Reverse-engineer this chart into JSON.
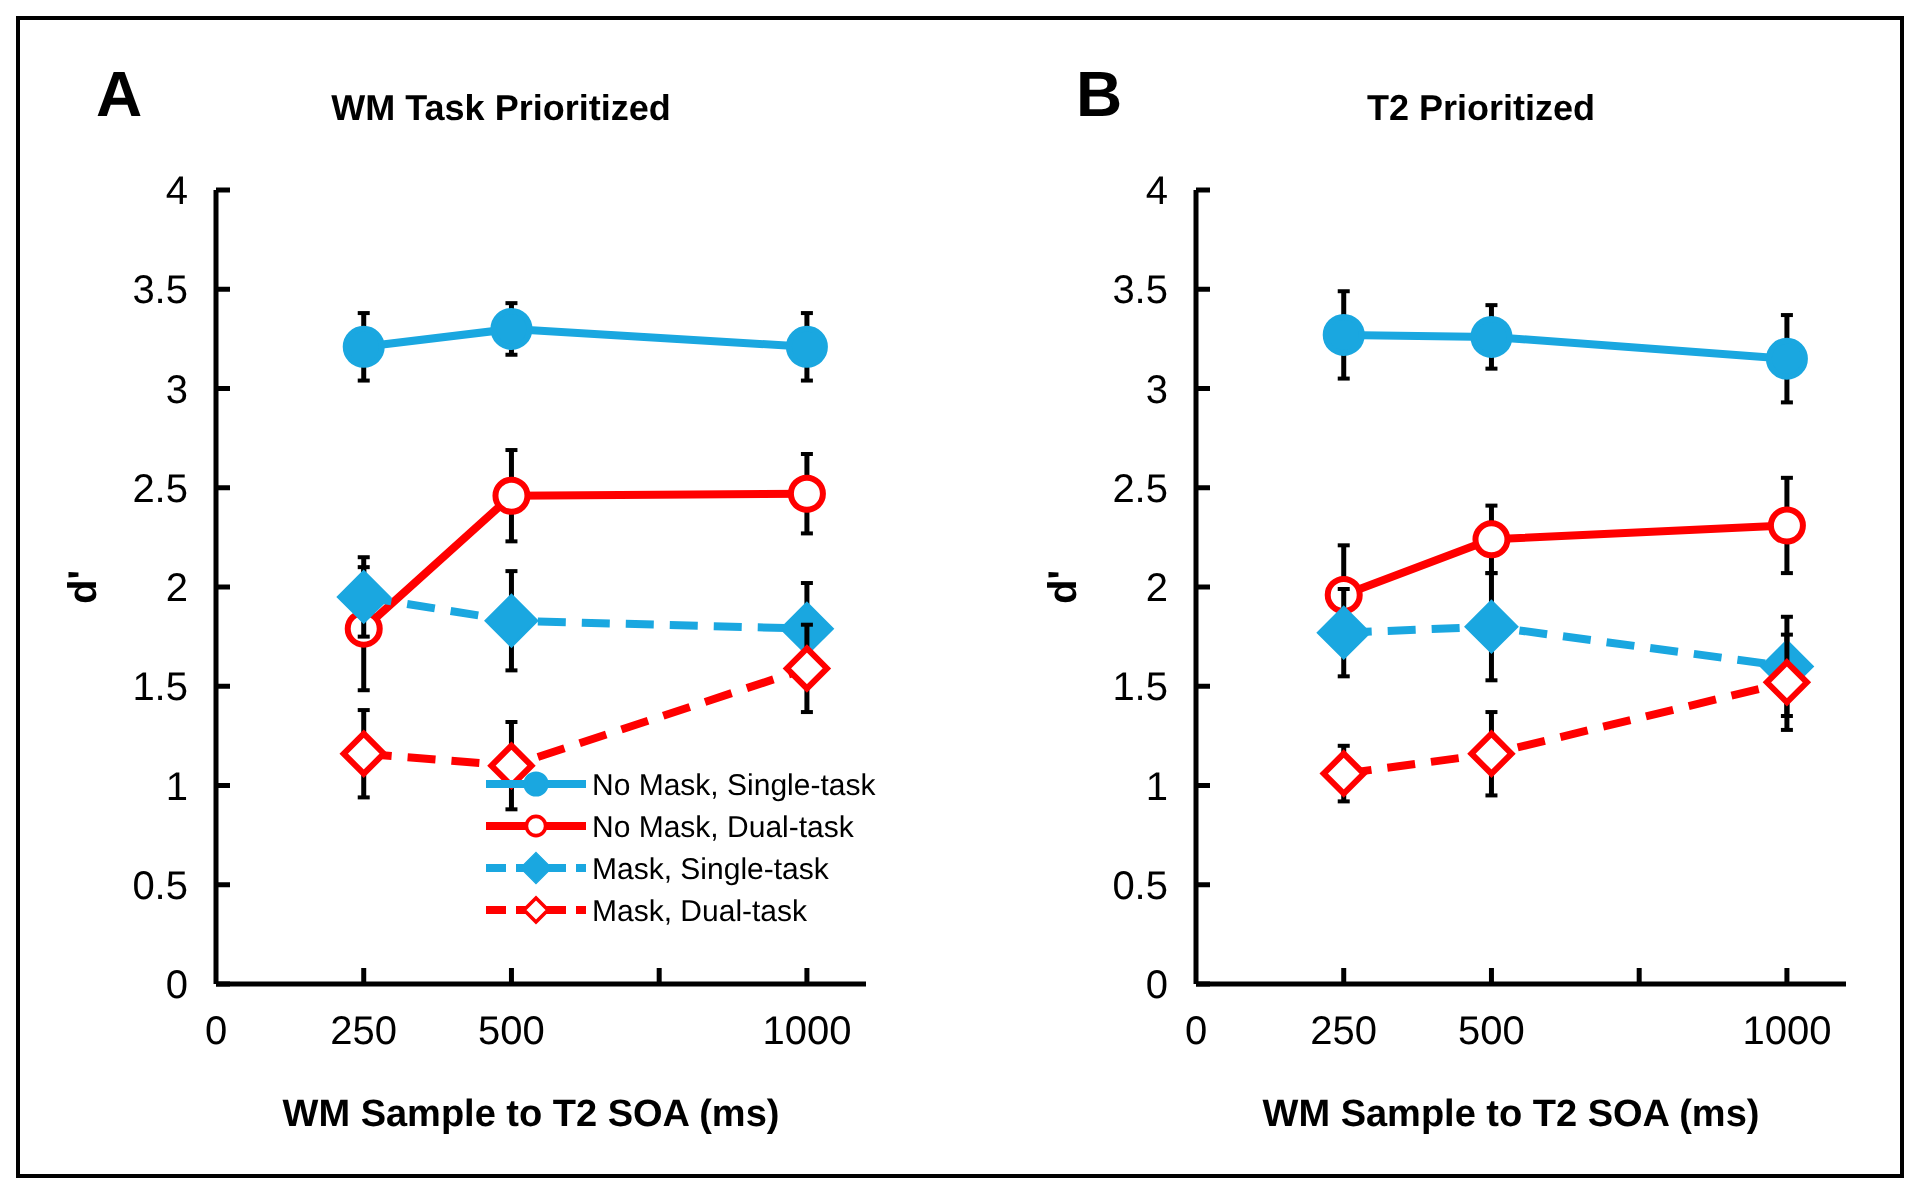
{
  "chart_data": [
    {
      "type": "line",
      "title": "WM Task Prioritized",
      "annotations": [
        "A"
      ],
      "xlabel": "WM Sample to T2 SOA (ms)",
      "ylabel": "d'",
      "x": [
        250,
        500,
        1000
      ],
      "xlim": [
        0,
        1100
      ],
      "xticks": [
        0,
        250,
        500,
        {
          "value": 750,
          "label": null
        },
        1000
      ],
      "ylim": [
        0,
        4
      ],
      "yticks": [
        0,
        0.5,
        1,
        1.5,
        2,
        2.5,
        3,
        3.5,
        4
      ],
      "grid": false,
      "legend": "bottom right",
      "series": [
        {
          "name": "No Mask, Single-task",
          "color": "#1aa7e0",
          "marker": "circle",
          "line_style": "solid",
          "values": [
            3.21,
            3.3,
            3.21
          ],
          "errors": [
            0.17,
            0.13,
            0.17
          ]
        },
        {
          "name": "No Mask, Dual-task",
          "color": "#ff0000",
          "marker": "circle",
          "line_style": "solid",
          "values": [
            1.79,
            2.46,
            2.47
          ],
          "errors": [
            0.31,
            0.23,
            0.2
          ]
        },
        {
          "name": "Mask, Single-task",
          "color": "#1aa7e0",
          "marker": "diamond",
          "line_style": "dashed",
          "values": [
            1.95,
            1.83,
            1.79
          ],
          "errors": [
            0.2,
            0.25,
            0.23
          ]
        },
        {
          "name": "Mask, Dual-task",
          "color": "#ff0000",
          "marker": "diamond",
          "line_style": "dashed",
          "values": [
            1.16,
            1.1,
            1.59
          ],
          "errors": [
            0.22,
            0.22,
            0.22
          ]
        }
      ]
    },
    {
      "type": "line",
      "title": "T2 Prioritized",
      "annotations": [
        "B"
      ],
      "xlabel": "WM Sample to T2 SOA (ms)",
      "ylabel": "d'",
      "x": [
        250,
        500,
        1000
      ],
      "xlim": [
        0,
        1100
      ],
      "xticks": [
        0,
        250,
        500,
        {
          "value": 750,
          "label": null
        },
        1000
      ],
      "ylim": [
        0,
        4
      ],
      "yticks": [
        0,
        0.5,
        1,
        1.5,
        2,
        2.5,
        3,
        3.5,
        4
      ],
      "grid": false,
      "legend": false,
      "series": [
        {
          "color": "#1aa7e0",
          "marker": "circle",
          "line_style": "solid",
          "values": [
            3.27,
            3.26,
            3.15
          ],
          "errors": [
            0.22,
            0.16,
            0.22
          ]
        },
        {
          "color": "#ff0000",
          "marker": "circle",
          "line_style": "solid",
          "values": [
            1.96,
            2.24,
            2.31
          ],
          "errors": [
            0.25,
            0.17,
            0.24
          ]
        },
        {
          "color": "#1aa7e0",
          "marker": "diamond",
          "line_style": "dashed",
          "values": [
            1.77,
            1.8,
            1.6
          ],
          "errors": [
            0.22,
            0.27,
            0.25
          ]
        },
        {
          "color": "#ff0000",
          "marker": "diamond",
          "line_style": "dashed",
          "values": [
            1.06,
            1.16,
            1.52
          ],
          "errors": [
            0.14,
            0.21,
            0.24
          ]
        }
      ]
    }
  ]
}
